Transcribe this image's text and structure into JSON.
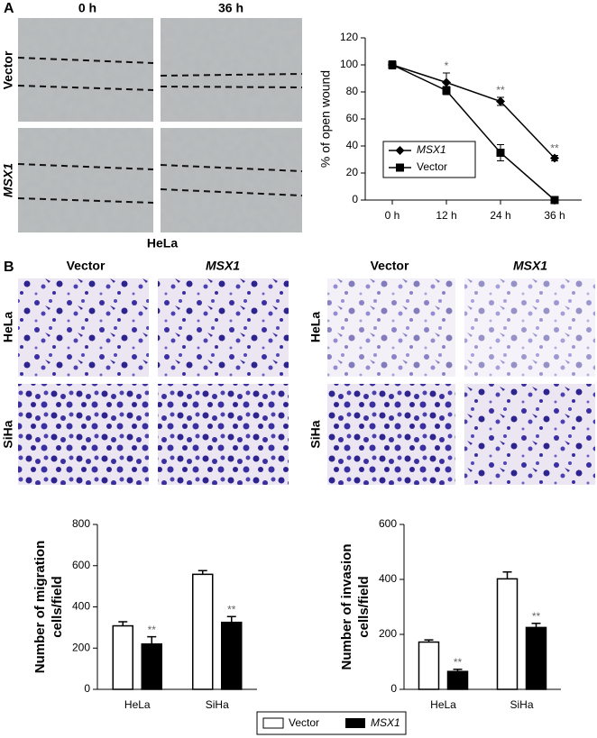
{
  "panel_a": {
    "label": "A",
    "columns": [
      "0 h",
      "36 h"
    ],
    "rows": [
      "Vector",
      "MSX1"
    ],
    "cell_line": "HeLa"
  },
  "panel_b": {
    "label": "B",
    "groups": [
      {
        "columns": [
          "Vector",
          "MSX1"
        ],
        "rows": [
          "HeLa",
          "SiHa"
        ]
      },
      {
        "columns": [
          "Vector",
          "MSX1"
        ],
        "rows": [
          "HeLa",
          "SiHa"
        ]
      }
    ]
  },
  "chart_data": [
    {
      "type": "line",
      "ylabel": [
        "% of open wound"
      ],
      "categories": [
        "0 h",
        "12 h",
        "24 h",
        "36 h"
      ],
      "ylim": [
        0,
        120
      ],
      "yticks": [
        0,
        20,
        40,
        60,
        80,
        100,
        120
      ],
      "series": [
        {
          "name": "MSX1",
          "color": "#000000",
          "marker": "diamond",
          "values": [
            100,
            87,
            73,
            31
          ],
          "errors": [
            3,
            7,
            3,
            2
          ],
          "significance": [
            null,
            "*",
            "**",
            "**"
          ]
        },
        {
          "name": "Vector",
          "color": "#000000",
          "marker": "square",
          "values": [
            100,
            81,
            35,
            0
          ],
          "errors": [
            3,
            3,
            6,
            1
          ]
        }
      ]
    },
    {
      "type": "bar",
      "ylabel": [
        "Number of migration",
        "cells/field"
      ],
      "categories": [
        "HeLa",
        "SiHa"
      ],
      "ylim": [
        0,
        800
      ],
      "yticks": [
        0,
        200,
        400,
        600,
        800
      ],
      "series": [
        {
          "name": "Vector",
          "color": "#ffffff",
          "values": [
            308,
            558
          ],
          "errors": [
            20,
            18
          ]
        },
        {
          "name": "MSX1",
          "color": "#000000",
          "values": [
            220,
            325
          ],
          "errors": [
            35,
            28
          ],
          "significance": [
            "**",
            "**"
          ]
        }
      ]
    },
    {
      "type": "bar",
      "ylabel": [
        "Number of invasion",
        "cells/field"
      ],
      "categories": [
        "HeLa",
        "SiHa"
      ],
      "ylim": [
        0,
        600
      ],
      "yticks": [
        0,
        200,
        400,
        600
      ],
      "series": [
        {
          "name": "Vector",
          "color": "#ffffff",
          "values": [
            172,
            402
          ],
          "errors": [
            8,
            25
          ]
        },
        {
          "name": "MSX1",
          "color": "#000000",
          "values": [
            65,
            225
          ],
          "errors": [
            8,
            15
          ],
          "significance": [
            "**",
            "**"
          ]
        }
      ]
    }
  ]
}
